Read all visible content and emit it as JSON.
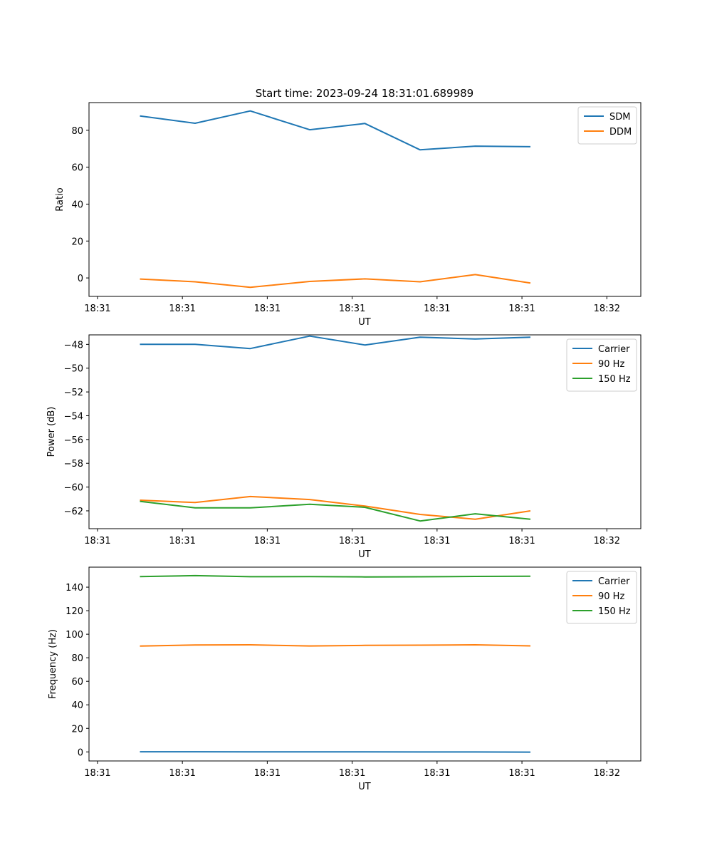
{
  "figure_title": "Start time: 2023-09-24 18:31:01.689989",
  "chart_data": [
    {
      "type": "line",
      "title": "Start time: 2023-09-24 18:31:01.689989",
      "xlabel": "UT",
      "ylabel": "Ratio",
      "xlim": [
        -0.6,
        5.9
      ],
      "ylim": [
        -10,
        95
      ],
      "yticks": [
        0,
        20,
        40,
        60,
        80
      ],
      "xticks": [
        -0.5,
        0.5,
        1.5,
        2.5,
        3.5,
        4.5,
        5.5
      ],
      "xticklabels": [
        "18:31",
        "18:31",
        "18:31",
        "18:31",
        "18:31",
        "18:31",
        "18:32"
      ],
      "legend": "top-right",
      "x": [
        0,
        0.65,
        1.3,
        2.0,
        2.65,
        3.3,
        3.95,
        4.6
      ],
      "series": [
        {
          "name": "SDM",
          "color": "#1f77b4",
          "values": [
            87.8,
            83.8,
            90.5,
            80.3,
            83.7,
            69.4,
            71.4,
            71.1
          ]
        },
        {
          "name": "DDM",
          "color": "#ff7f0e",
          "values": [
            -0.6,
            -2.1,
            -5.1,
            -1.9,
            -0.5,
            -2.1,
            1.8,
            -2.8
          ]
        }
      ]
    },
    {
      "type": "line",
      "xlabel": "UT",
      "ylabel": "Power (dB)",
      "xlim": [
        -0.6,
        5.9
      ],
      "ylim": [
        -63.5,
        -47.2
      ],
      "yticks": [
        -48,
        -50,
        -52,
        -54,
        -56,
        -58,
        -60,
        -62
      ],
      "yticklabels": [
        "−48",
        "−50",
        "−52",
        "−54",
        "−56",
        "−58",
        "−60",
        "−62"
      ],
      "xticks": [
        -0.5,
        0.5,
        1.5,
        2.5,
        3.5,
        4.5,
        5.5
      ],
      "xticklabels": [
        "18:31",
        "18:31",
        "18:31",
        "18:31",
        "18:31",
        "18:31",
        "18:32"
      ],
      "legend": "top-right",
      "x": [
        0,
        0.65,
        1.3,
        2.0,
        2.65,
        3.3,
        3.95,
        4.6
      ],
      "series": [
        {
          "name": "Carrier",
          "color": "#1f77b4",
          "values": [
            -48.0,
            -48.0,
            -48.35,
            -47.3,
            -48.05,
            -47.4,
            -47.55,
            -47.4
          ]
        },
        {
          "name": "90 Hz",
          "color": "#ff7f0e",
          "values": [
            -61.1,
            -61.3,
            -60.8,
            -61.05,
            -61.6,
            -62.3,
            -62.7,
            -62.0
          ]
        },
        {
          "name": "150 Hz",
          "color": "#2ca02c",
          "values": [
            -61.2,
            -61.75,
            -61.75,
            -61.45,
            -61.7,
            -62.85,
            -62.25,
            -62.7
          ]
        }
      ]
    },
    {
      "type": "line",
      "xlabel": "UT",
      "ylabel": "Frequency (Hz)",
      "xlim": [
        -0.6,
        5.9
      ],
      "ylim": [
        -7.7,
        157
      ],
      "yticks": [
        0,
        20,
        40,
        60,
        80,
        100,
        120,
        140
      ],
      "xticks": [
        -0.5,
        0.5,
        1.5,
        2.5,
        3.5,
        4.5,
        5.5
      ],
      "xticklabels": [
        "18:31",
        "18:31",
        "18:31",
        "18:31",
        "18:31",
        "18:31",
        "18:32"
      ],
      "legend": "top-right",
      "x": [
        0,
        0.65,
        1.3,
        2.0,
        2.65,
        3.3,
        3.95,
        4.6
      ],
      "series": [
        {
          "name": "Carrier",
          "color": "#1f77b4",
          "values": [
            0.1,
            0.1,
            0.05,
            0.05,
            0.05,
            -0.1,
            -0.05,
            -0.2
          ]
        },
        {
          "name": "90 Hz",
          "color": "#ff7f0e",
          "values": [
            89.9,
            90.9,
            91.0,
            90.0,
            90.5,
            90.7,
            91.0,
            90.1
          ]
        },
        {
          "name": "150 Hz",
          "color": "#2ca02c",
          "values": [
            149.0,
            149.8,
            148.9,
            149.0,
            148.7,
            148.8,
            149.1,
            149.3
          ]
        }
      ]
    }
  ]
}
